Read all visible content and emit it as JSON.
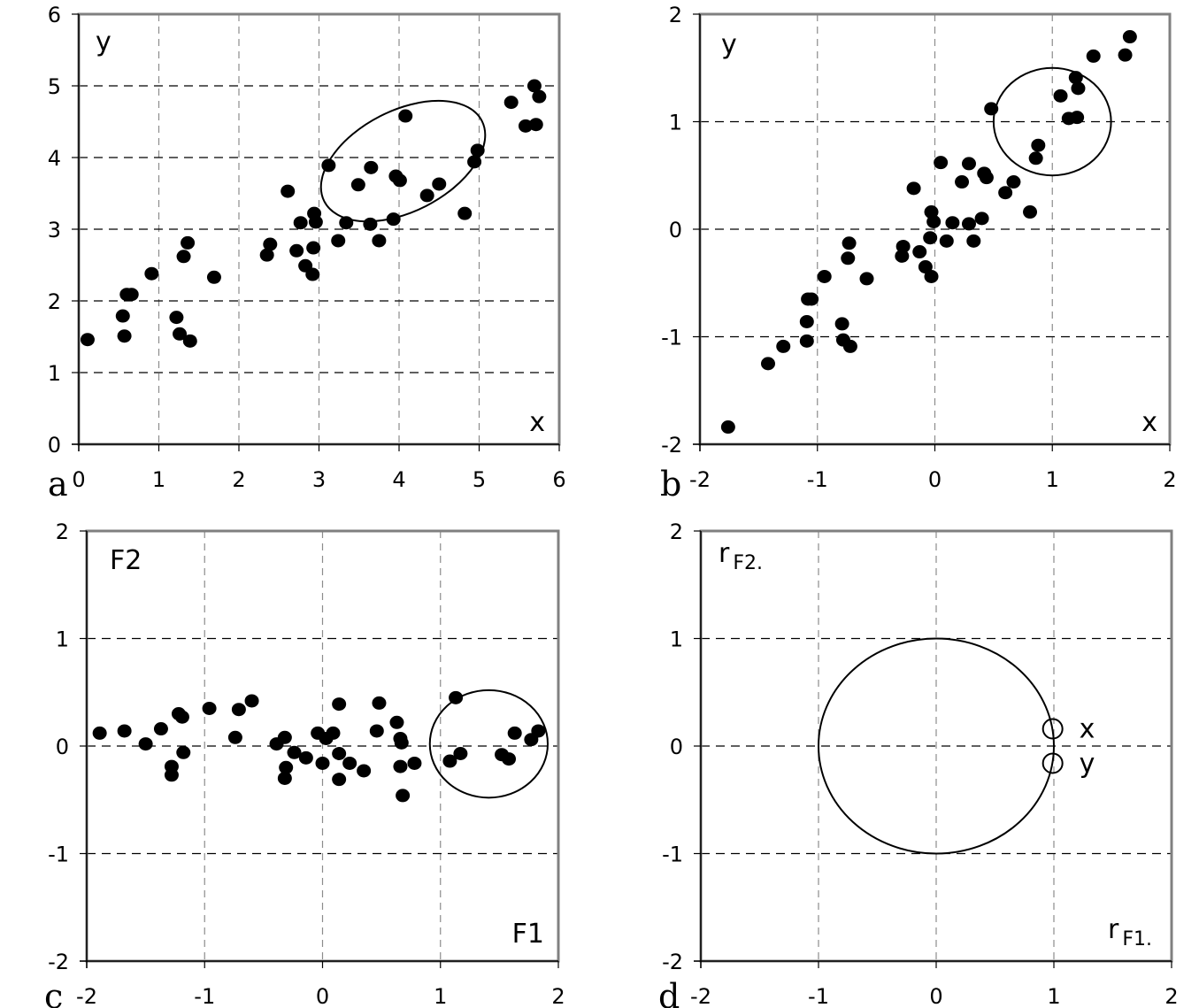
{
  "figure": {
    "panels": [
      {
        "id": "a",
        "letter": "a",
        "x_label": "x",
        "y_label": "y",
        "y_label_sub": "",
        "x_label_sub": ""
      },
      {
        "id": "b",
        "letter": "b",
        "x_label": "x",
        "y_label": "y",
        "y_label_sub": "",
        "x_label_sub": ""
      },
      {
        "id": "c",
        "letter": "c",
        "x_label": "F1",
        "y_label": "F2",
        "y_label_sub": "",
        "x_label_sub": ""
      },
      {
        "id": "d",
        "letter": "d",
        "x_label": "r",
        "x_label_sub": "F1.",
        "y_label": "r",
        "y_label_sub": "F2."
      }
    ],
    "colors": {
      "points": "#000000",
      "frame": "#808080",
      "grid": "#000000",
      "vgrid": "#8c8c8c",
      "axis": "#000000"
    }
  },
  "chart_data": [
    {
      "id": "a",
      "type": "scatter",
      "title": "",
      "xlabel": "x",
      "ylabel": "y",
      "xlim": [
        0,
        6
      ],
      "ylim": [
        0,
        6
      ],
      "xticks": [
        "0",
        "1",
        "2",
        "3",
        "4",
        "5",
        "6"
      ],
      "yticks": [
        "0",
        "1",
        "2",
        "3",
        "4",
        "5",
        "6"
      ],
      "grid": true,
      "points": [
        [
          0.11,
          1.46
        ],
        [
          0.55,
          1.79
        ],
        [
          0.57,
          1.51
        ],
        [
          0.6,
          2.09
        ],
        [
          0.66,
          2.09
        ],
        [
          0.91,
          2.38
        ],
        [
          1.22,
          1.77
        ],
        [
          1.26,
          1.54
        ],
        [
          1.31,
          2.62
        ],
        [
          1.36,
          2.81
        ],
        [
          1.39,
          1.44
        ],
        [
          1.69,
          2.33
        ],
        [
          2.35,
          2.64
        ],
        [
          2.39,
          2.79
        ],
        [
          2.61,
          3.53
        ],
        [
          2.72,
          2.7
        ],
        [
          2.77,
          3.09
        ],
        [
          2.83,
          2.49
        ],
        [
          2.92,
          2.37
        ],
        [
          2.94,
          3.22
        ],
        [
          2.96,
          3.1
        ],
        [
          2.93,
          2.74
        ],
        [
          3.12,
          3.89
        ],
        [
          3.24,
          2.84
        ],
        [
          3.34,
          3.09
        ],
        [
          3.49,
          3.62
        ],
        [
          3.64,
          3.07
        ],
        [
          3.65,
          3.86
        ],
        [
          3.75,
          2.84
        ],
        [
          3.93,
          3.14
        ],
        [
          3.96,
          3.74
        ],
        [
          4.01,
          3.68
        ],
        [
          4.08,
          4.58
        ],
        [
          4.35,
          3.47
        ],
        [
          4.5,
          3.63
        ],
        [
          4.82,
          3.22
        ],
        [
          4.94,
          3.94
        ],
        [
          4.98,
          4.1
        ],
        [
          5.4,
          4.77
        ],
        [
          5.58,
          4.44
        ],
        [
          5.69,
          5.0
        ],
        [
          5.71,
          4.46
        ],
        [
          5.75,
          4.85
        ]
      ],
      "annotations": [
        {
          "shape": "ellipse",
          "center": [
            4.05,
            3.95
          ],
          "note": "tilted ellipse enclosing a cluster"
        }
      ]
    },
    {
      "id": "b",
      "type": "scatter",
      "title": "",
      "xlabel": "x",
      "ylabel": "y",
      "xlim": [
        -2,
        2
      ],
      "ylim": [
        -2,
        2
      ],
      "xticks": [
        "-2",
        "-1",
        "0",
        "1",
        "2"
      ],
      "yticks": [
        "-2",
        "-1",
        "0",
        "1",
        "2"
      ],
      "grid": true,
      "points": [
        [
          -1.76,
          -1.84
        ],
        [
          -1.42,
          -1.25
        ],
        [
          -1.29,
          -1.09
        ],
        [
          -1.09,
          -0.86
        ],
        [
          -1.08,
          -0.65
        ],
        [
          -1.05,
          -0.65
        ],
        [
          -1.09,
          -1.04
        ],
        [
          -0.94,
          -0.44
        ],
        [
          -0.79,
          -0.88
        ],
        [
          -0.78,
          -1.03
        ],
        [
          -0.74,
          -0.27
        ],
        [
          -0.72,
          -1.09
        ],
        [
          -0.73,
          -0.13
        ],
        [
          -0.58,
          -0.46
        ],
        [
          -0.28,
          -0.25
        ],
        [
          -0.27,
          -0.16
        ],
        [
          -0.18,
          0.38
        ],
        [
          -0.13,
          -0.21
        ],
        [
          -0.08,
          -0.35
        ],
        [
          -0.04,
          -0.08
        ],
        [
          -0.03,
          0.16
        ],
        [
          -0.01,
          0.07
        ],
        [
          -0.03,
          -0.44
        ],
        [
          0.05,
          0.62
        ],
        [
          0.1,
          -0.11
        ],
        [
          0.15,
          0.06
        ],
        [
          0.23,
          0.44
        ],
        [
          0.29,
          0.61
        ],
        [
          0.29,
          0.05
        ],
        [
          0.33,
          -0.11
        ],
        [
          0.4,
          0.1
        ],
        [
          0.42,
          0.52
        ],
        [
          0.44,
          0.48
        ],
        [
          0.6,
          0.34
        ],
        [
          0.67,
          0.44
        ],
        [
          0.81,
          0.16
        ],
        [
          0.86,
          0.66
        ],
        [
          0.88,
          0.78
        ],
        [
          0.48,
          1.12
        ],
        [
          1.07,
          1.24
        ],
        [
          1.14,
          1.03
        ],
        [
          1.21,
          1.04
        ],
        [
          1.2,
          1.41
        ],
        [
          1.22,
          1.31
        ],
        [
          1.35,
          1.61
        ],
        [
          1.62,
          1.62
        ],
        [
          1.66,
          1.79
        ]
      ],
      "annotations": [
        {
          "shape": "circle",
          "center": [
            1.0,
            1.0
          ],
          "radius": 0.5
        }
      ]
    },
    {
      "id": "c",
      "type": "scatter",
      "title": "",
      "xlabel": "F1",
      "ylabel": "F2",
      "xlim": [
        -2,
        2
      ],
      "ylim": [
        -2,
        2
      ],
      "xticks": [
        "-2",
        "-1",
        "0",
        "1",
        "2"
      ],
      "yticks": [
        "-2",
        "-1",
        "0",
        "1",
        "2"
      ],
      "grid": true,
      "points": [
        [
          -1.89,
          0.12
        ],
        [
          -1.68,
          0.14
        ],
        [
          -1.5,
          0.02
        ],
        [
          -1.37,
          0.16
        ],
        [
          -1.28,
          -0.19
        ],
        [
          -1.28,
          -0.27
        ],
        [
          -1.22,
          0.3
        ],
        [
          -1.19,
          0.27
        ],
        [
          -1.18,
          -0.06
        ],
        [
          -0.96,
          0.35
        ],
        [
          -0.74,
          0.08
        ],
        [
          -0.71,
          0.34
        ],
        [
          -0.6,
          0.42
        ],
        [
          -0.39,
          0.02
        ],
        [
          -0.32,
          0.08
        ],
        [
          -0.31,
          -0.2
        ],
        [
          -0.32,
          -0.3
        ],
        [
          -0.24,
          -0.06
        ],
        [
          -0.14,
          -0.11
        ],
        [
          -0.04,
          0.12
        ],
        [
          0.0,
          -0.16
        ],
        [
          0.03,
          0.07
        ],
        [
          0.09,
          0.12
        ],
        [
          0.14,
          -0.07
        ],
        [
          0.14,
          0.39
        ],
        [
          0.14,
          -0.31
        ],
        [
          0.23,
          -0.16
        ],
        [
          0.35,
          -0.23
        ],
        [
          0.46,
          0.14
        ],
        [
          0.48,
          0.4
        ],
        [
          0.63,
          0.22
        ],
        [
          0.66,
          0.07
        ],
        [
          0.67,
          0.03
        ],
        [
          0.66,
          -0.19
        ],
        [
          0.68,
          -0.46
        ],
        [
          0.78,
          -0.16
        ],
        [
          1.08,
          -0.14
        ],
        [
          1.13,
          0.45
        ],
        [
          1.17,
          -0.07
        ],
        [
          1.52,
          -0.08
        ],
        [
          1.58,
          -0.12
        ],
        [
          1.63,
          0.12
        ],
        [
          1.77,
          0.06
        ],
        [
          1.83,
          0.14
        ]
      ],
      "annotations": [
        {
          "shape": "circle",
          "center": [
            1.41,
            0.02
          ],
          "radius": 0.5
        }
      ]
    },
    {
      "id": "d",
      "type": "scatter",
      "title": "",
      "xlabel": "rF1.",
      "ylabel": "rF2.",
      "xlim": [
        -2,
        2
      ],
      "ylim": [
        -2,
        2
      ],
      "xticks": [
        "-2",
        "-1",
        "0",
        "1",
        "2"
      ],
      "yticks": [
        "-2",
        "-1",
        "0",
        "1",
        "2"
      ],
      "grid": true,
      "points": [
        {
          "label": "x",
          "x": 0.99,
          "y": 0.16
        },
        {
          "label": "y",
          "x": 0.99,
          "y": -0.16
        }
      ],
      "annotations": [
        {
          "shape": "circle",
          "center": [
            0,
            0
          ],
          "radius": 1,
          "note": "unit correlation circle"
        }
      ]
    }
  ]
}
